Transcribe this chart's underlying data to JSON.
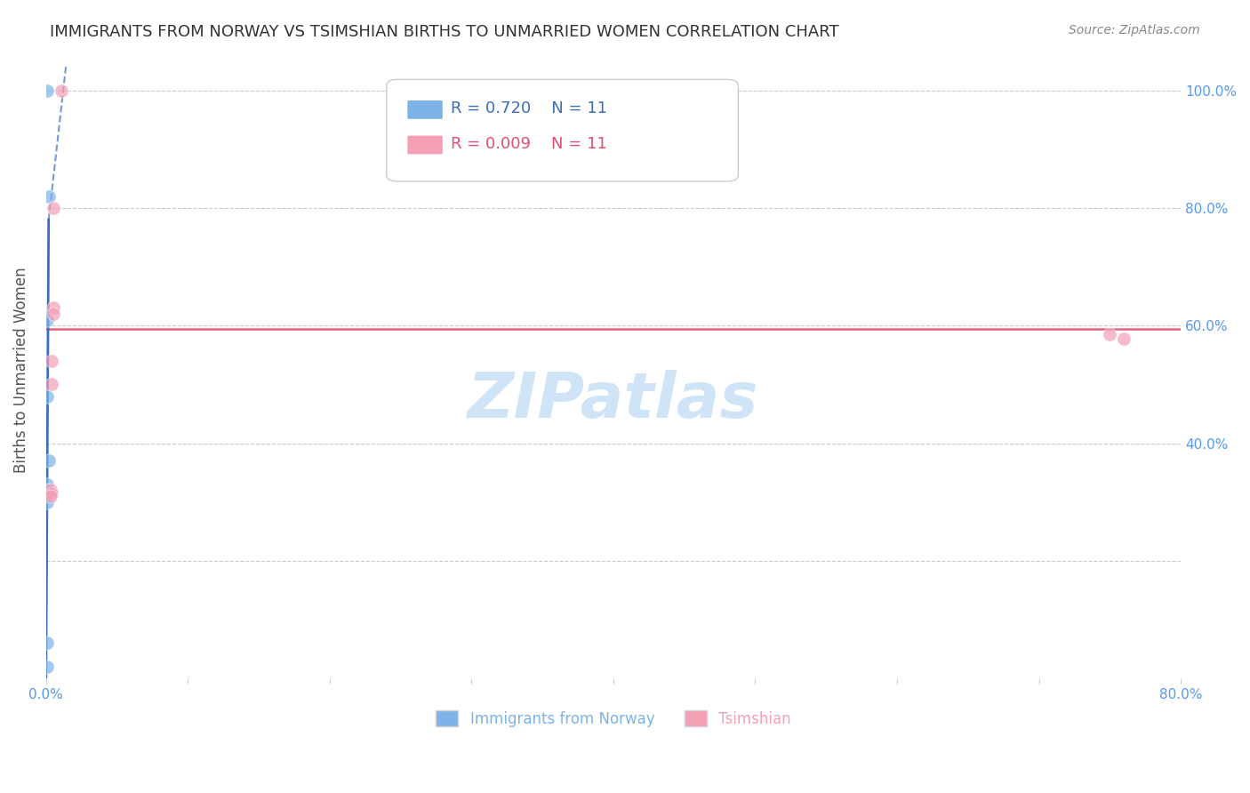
{
  "title": "IMMIGRANTS FROM NORWAY VS TSIMSHIAN BIRTHS TO UNMARRIED WOMEN CORRELATION CHART",
  "source": "Source: ZipAtlas.com",
  "ylabel": "Births to Unmarried Women",
  "R_blue": 0.72,
  "N_blue": 11,
  "R_pink": 0.009,
  "N_pink": 11,
  "blue_points_x": [
    0.001,
    0.002,
    0.001,
    0.001,
    0.002,
    0.001,
    0.001,
    0.001,
    0.001,
    0.001,
    0.001
  ],
  "blue_points_y": [
    1.0,
    0.82,
    0.61,
    0.48,
    0.37,
    0.33,
    0.32,
    0.31,
    0.3,
    0.06,
    0.02
  ],
  "pink_points_x": [
    0.011,
    0.005,
    0.005,
    0.005,
    0.004,
    0.004,
    0.003,
    0.75,
    0.76,
    0.004,
    0.003
  ],
  "pink_points_y": [
    1.0,
    0.8,
    0.63,
    0.62,
    0.54,
    0.5,
    0.32,
    0.585,
    0.577,
    0.315,
    0.31
  ],
  "pink_trend_y": 0.595,
  "xlim": [
    0.0,
    0.8
  ],
  "ylim": [
    0.0,
    1.05
  ],
  "xticks": [
    0.0,
    0.1,
    0.2,
    0.3,
    0.4,
    0.5,
    0.6,
    0.7,
    0.8
  ],
  "yticks": [
    0.0,
    0.2,
    0.4,
    0.6,
    0.8,
    1.0
  ],
  "blue_color": "#7EB3E8",
  "pink_color": "#F4A0B5",
  "blue_line_color": "#3B6DBF",
  "pink_line_color": "#E05070",
  "grid_color": "#CCCCCC",
  "title_color": "#333333",
  "axis_label_color": "#555555",
  "tick_color_right": "#5599EE",
  "background_color": "#FFFFFF",
  "watermark": "ZIPatlas",
  "watermark_color": "#D0E4F7",
  "scatter_size": 120
}
